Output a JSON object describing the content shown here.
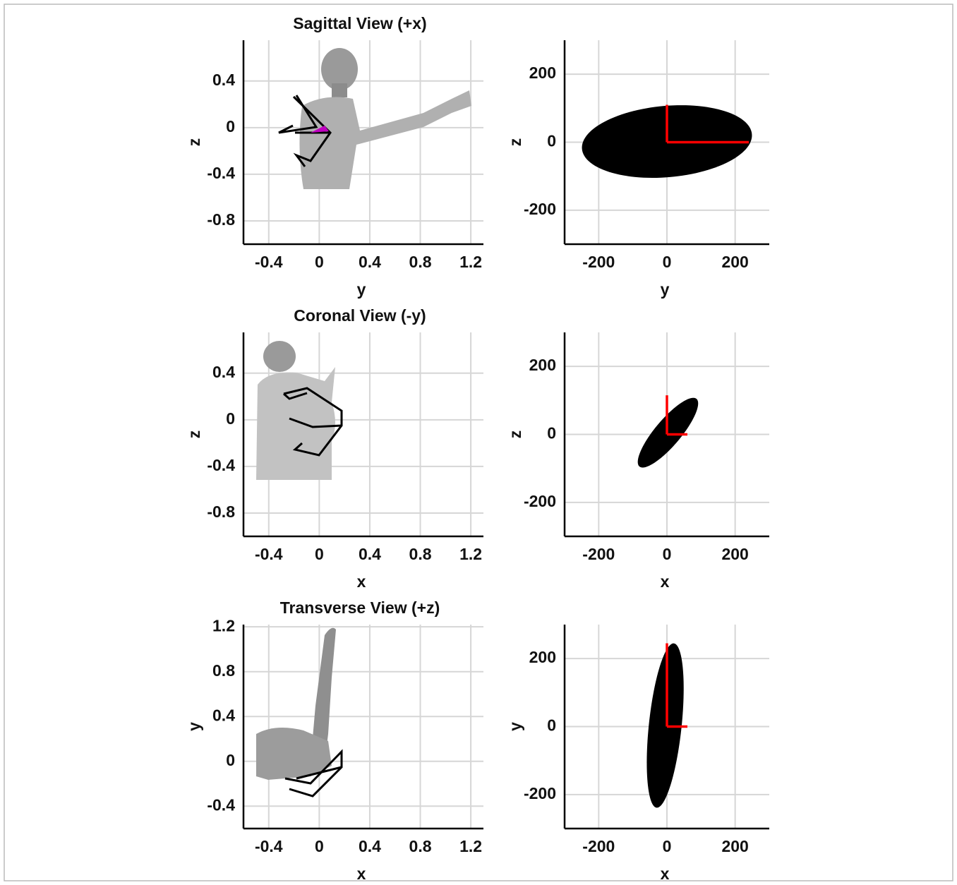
{
  "chart_data": [
    {
      "type": "figure",
      "title": "Sagittal View (+x)",
      "xlabel": "y",
      "ylabel": "z",
      "xlim": [
        -0.6,
        1.3
      ],
      "ylim": [
        -1.0,
        0.75
      ],
      "xticks": [
        -0.4,
        0,
        0.4,
        0.8,
        1.2
      ],
      "yticks": [
        0.4,
        0,
        -0.4,
        -0.8
      ],
      "grid": true
    },
    {
      "type": "ellipse",
      "xlabel": "y",
      "ylabel": "z",
      "xlim": [
        -300,
        300
      ],
      "ylim": [
        -300,
        300
      ],
      "xticks": [
        -200,
        0,
        200
      ],
      "yticks": [
        200,
        0,
        -200
      ],
      "grid": true,
      "ellipse": {
        "center": [
          0,
          2
        ],
        "semi_axes": [
          250,
          105
        ],
        "angle": 5,
        "color": "#000000"
      },
      "vector_color": "#ff0000",
      "vectors": [
        {
          "x": [
            0,
            240
          ],
          "y": [
            0,
            0
          ]
        },
        {
          "x": [
            0,
            0
          ],
          "y": [
            0,
            110
          ]
        }
      ]
    },
    {
      "type": "figure",
      "title": "Coronal View (-y)",
      "xlabel": "x",
      "ylabel": "z",
      "xlim": [
        -0.6,
        1.3
      ],
      "ylim": [
        -1.0,
        0.75
      ],
      "xticks": [
        -0.4,
        0,
        0.4,
        0.8,
        1.2
      ],
      "yticks": [
        0.4,
        0,
        -0.4,
        -0.8
      ],
      "grid": true
    },
    {
      "type": "ellipse",
      "xlabel": "x",
      "ylabel": "z",
      "xlim": [
        -300,
        300
      ],
      "ylim": [
        -300,
        300
      ],
      "xticks": [
        -200,
        0,
        200
      ],
      "yticks": [
        200,
        0,
        -200
      ],
      "grid": true,
      "ellipse": {
        "center": [
          3,
          5
        ],
        "semi_axes": [
          130,
          38
        ],
        "angle": 50,
        "color": "#000000"
      },
      "vector_color": "#ff0000",
      "vectors": [
        {
          "x": [
            0,
            60
          ],
          "y": [
            0,
            0
          ]
        },
        {
          "x": [
            0,
            0
          ],
          "y": [
            0,
            115
          ]
        }
      ]
    },
    {
      "type": "figure",
      "title": "Transverse View (+z)",
      "xlabel": "x",
      "ylabel": "y",
      "xlim": [
        -0.6,
        1.3
      ],
      "ylim": [
        -0.6,
        1.22
      ],
      "xticks": [
        -0.4,
        0,
        0.4,
        0.8,
        1.2
      ],
      "yticks": [
        1.2,
        0.8,
        0.4,
        0,
        -0.4
      ],
      "grid": true
    },
    {
      "type": "ellipse",
      "xlabel": "x",
      "ylabel": "y",
      "xlim": [
        -300,
        300
      ],
      "ylim": [
        -300,
        300
      ],
      "xticks": [
        -200,
        0,
        200
      ],
      "yticks": [
        200,
        0,
        -200
      ],
      "grid": true,
      "ellipse": {
        "center": [
          -5,
          3
        ],
        "semi_axes": [
          243,
          48
        ],
        "angle": 84,
        "color": "#000000"
      },
      "vector_color": "#ff0000",
      "vectors": [
        {
          "x": [
            0,
            60
          ],
          "y": [
            0,
            0
          ]
        },
        {
          "x": [
            0,
            0
          ],
          "y": [
            0,
            245
          ]
        }
      ]
    }
  ]
}
